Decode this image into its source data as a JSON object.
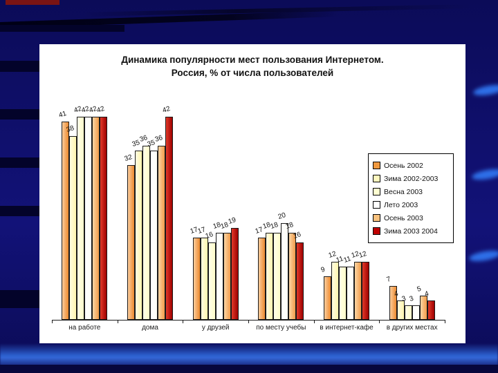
{
  "slide": {
    "background_color": "#10106E",
    "accent_streak_color": "#2E6FE8",
    "maroon_accent_color": "#7A1414",
    "panel_color": "#FFFFFF"
  },
  "chart_data": {
    "type": "bar",
    "title": "Динамика популярности мест пользования Интернетом.",
    "subtitle": "Россия, % от числа пользователей",
    "xlabel": "",
    "ylabel": "",
    "ylim": [
      0,
      45
    ],
    "grid": false,
    "legend_position": "right",
    "value_labels": true,
    "categories": [
      "на работе",
      "дома",
      "у друзей",
      "по месту учебы",
      "в интернет-кафе",
      "в других местах"
    ],
    "series": [
      {
        "name": "Осень 2002",
        "color": "#F1993F",
        "fill": [
          "#FBCD9C",
          "#ED8A2F"
        ],
        "values": [
          41,
          32,
          17,
          17,
          9,
          7
        ]
      },
      {
        "name": "Зима 2002-2003",
        "color": "#FFF8BE",
        "fill": [
          "#FFFDE2",
          "#FFF5AE"
        ],
        "values": [
          38,
          35,
          17,
          18,
          12,
          4
        ]
      },
      {
        "name": "Весна 2003",
        "color": "#FFFFD0",
        "fill": [
          "#FFFFEA",
          "#FFFCC8"
        ],
        "values": [
          42,
          36,
          16,
          18,
          11,
          3
        ]
      },
      {
        "name": "Лето 2003",
        "color": "#FFFFFF",
        "fill": [
          "#FFFFFF",
          "#FDFDF6"
        ],
        "values": [
          42,
          35,
          18,
          20,
          11,
          3
        ]
      },
      {
        "name": "Осень 2003",
        "color": "#F9C27E",
        "fill": [
          "#FCD6A4",
          "#F29C4A"
        ],
        "values": [
          42,
          36,
          18,
          18,
          12,
          5
        ]
      },
      {
        "name": "Зима 2003 2004",
        "color": "#C00000",
        "fill": [
          "#E23A2A",
          "#9E0000"
        ],
        "values": [
          42,
          42,
          19,
          16,
          12,
          4
        ]
      }
    ]
  }
}
